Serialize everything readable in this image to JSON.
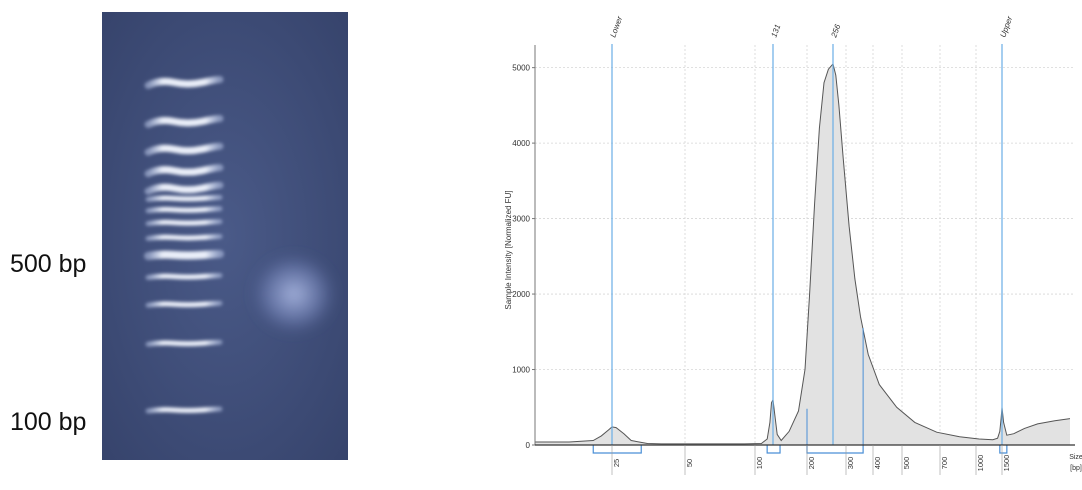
{
  "gel": {
    "labels": {
      "upper": "500 bp",
      "lower": "100 bp"
    },
    "ladder_bands_bp": [
      100,
      200,
      300,
      400,
      500,
      600,
      700,
      800,
      900,
      1000,
      1200,
      1500,
      2000,
      3000
    ],
    "sample_smear_peak_bp": 400,
    "colors": {
      "background": "#3f4d78",
      "band": "#e8f0ff"
    }
  },
  "chart_data": {
    "type": "area",
    "title": "",
    "xlabel": "Size [bp]",
    "ylabel": "Sample Intensity [Normalized FU]",
    "ylim": [
      0,
      5300
    ],
    "y_ticks": [
      0,
      1000,
      2000,
      3000,
      4000,
      5000
    ],
    "x_ticks": [
      "25",
      "50",
      "100",
      "200",
      "300",
      "400",
      "500",
      "700",
      "1000",
      "1500"
    ],
    "x_tick_positions_bp": [
      25,
      50,
      100,
      200,
      300,
      400,
      500,
      700,
      1000,
      1500
    ],
    "peak_markers": [
      {
        "label": "Lower",
        "bp": 25
      },
      {
        "label": "131",
        "bp": 131
      },
      {
        "label": "256",
        "bp": 256
      },
      {
        "label": "Upper",
        "bp": 1500
      }
    ],
    "series": [
      {
        "x": [
          10,
          15,
          20,
          22,
          24,
          25,
          26,
          28,
          30,
          35,
          40,
          60,
          90,
          110,
          120,
          125,
          128,
          131,
          134,
          138,
          145,
          160,
          180,
          195,
          205,
          215,
          225,
          235,
          245,
          256,
          265,
          275,
          290,
          310,
          330,
          350,
          380,
          420,
          480,
          560,
          680,
          850,
          1050,
          1300,
          1400,
          1450,
          1480,
          1500,
          1520,
          1560,
          1650,
          1800,
          2000,
          2300,
          2600
        ],
        "values": [
          40,
          40,
          60,
          120,
          200,
          240,
          230,
          150,
          60,
          20,
          15,
          15,
          15,
          20,
          80,
          300,
          560,
          600,
          400,
          140,
          60,
          180,
          450,
          1000,
          2000,
          3200,
          4200,
          4800,
          4980,
          5050,
          4900,
          4500,
          3800,
          2900,
          2200,
          1700,
          1200,
          800,
          500,
          300,
          170,
          110,
          80,
          70,
          90,
          180,
          350,
          500,
          300,
          130,
          150,
          220,
          280,
          320,
          350
        ]
      }
    ],
    "region_brackets_bp": [
      [
        20,
        33
      ],
      [
        120,
        143
      ],
      [
        200,
        360
      ],
      [
        1450,
        1560
      ]
    ],
    "grid": true,
    "colors": {
      "fill": "#e2e2e2",
      "line": "#555555",
      "marker": "#6aaee6",
      "bracket": "#4a8fd6"
    }
  }
}
